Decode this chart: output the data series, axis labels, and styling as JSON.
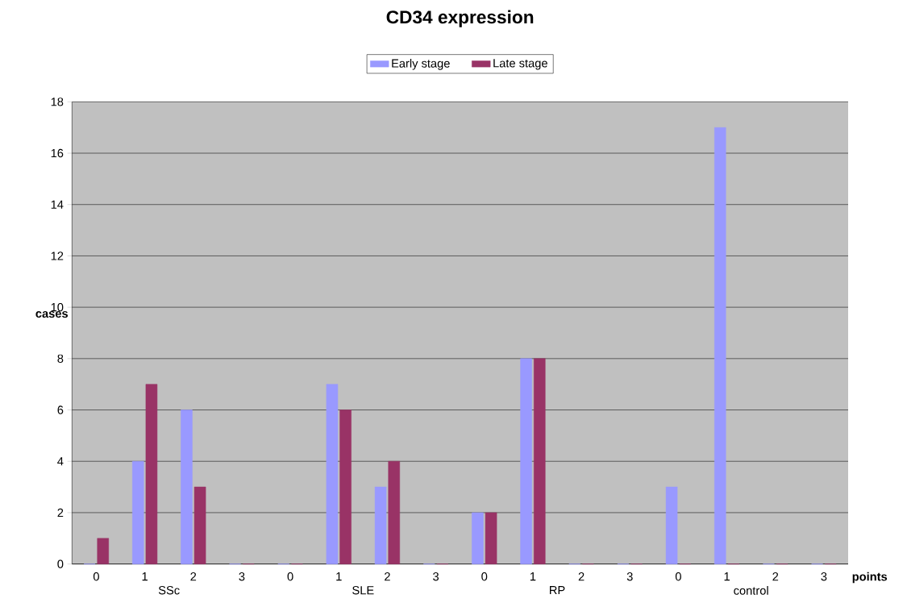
{
  "chart_data": {
    "type": "bar",
    "title": "CD34 expression",
    "xlabel": "points",
    "ylabel": "cases",
    "categories": [
      "0",
      "1",
      "2",
      "3",
      "0",
      "1",
      "2",
      "3",
      "0",
      "1",
      "2",
      "3",
      "0",
      "1",
      "2",
      "3"
    ],
    "series": [
      {
        "name": "Early stage",
        "color": "#9999ff",
        "values": [
          0,
          4,
          6,
          0,
          0,
          7,
          3,
          0,
          2,
          8,
          0,
          0,
          3,
          17,
          0,
          0
        ]
      },
      {
        "name": "Late stage",
        "color": "#993366",
        "values": [
          1,
          7,
          3,
          0,
          0,
          6,
          4,
          0,
          2,
          8,
          0,
          0,
          0,
          0,
          0,
          0
        ]
      }
    ],
    "annotations": [
      "SSc",
      "SLE",
      "RP",
      "control"
    ],
    "ylim": [
      0,
      18
    ],
    "yticks": [
      0,
      2,
      4,
      6,
      8,
      10,
      12,
      14,
      16,
      18
    ],
    "grid": "y",
    "legend": "top"
  }
}
